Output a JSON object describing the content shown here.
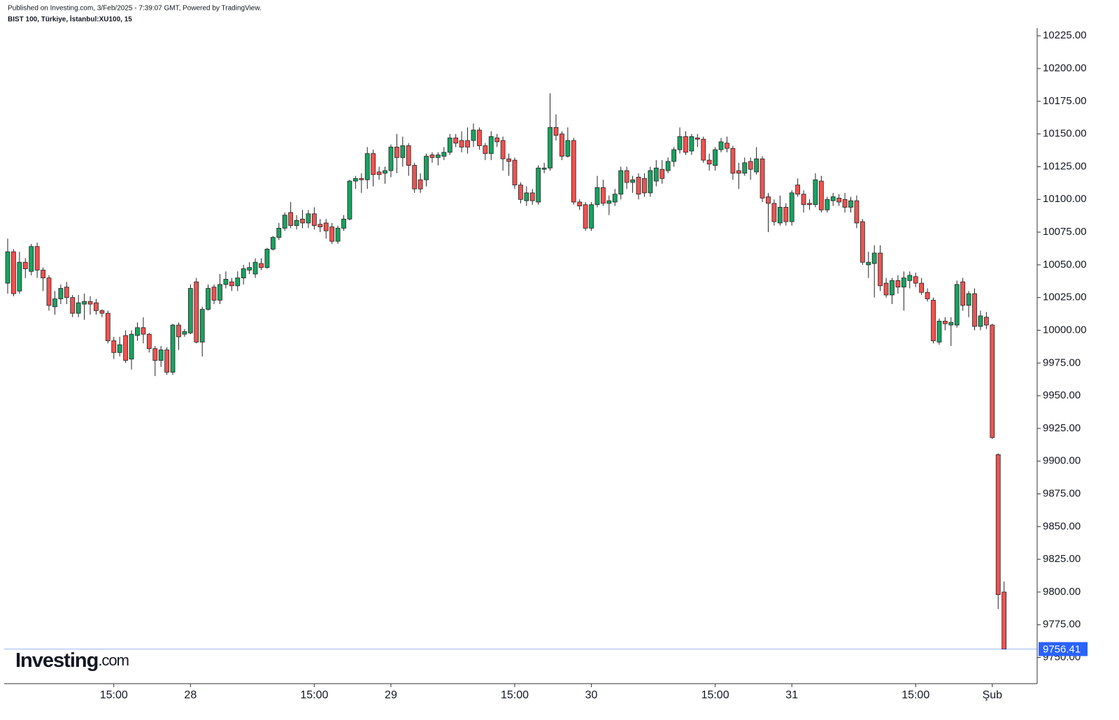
{
  "chart_data": {
    "type": "candlestick",
    "title": "Published on Investing.com, 3/Feb/2025 - 7:39:07 GMT, Powered by TradingView.",
    "subtitle": "BIST 100, Türkiye, İstanbul:XU100, 15",
    "logo": [
      "Investing",
      ".com"
    ],
    "up_color": "#1aa260",
    "down_color": "#ef5350",
    "ylim": [
      9730,
      10231
    ],
    "yticks": [
      {
        "value": 9750,
        "label": "9750.00"
      },
      {
        "value": 9775,
        "label": "9775.00"
      },
      {
        "value": 9800,
        "label": "9800.00"
      },
      {
        "value": 9825,
        "label": "9825.00"
      },
      {
        "value": 9850,
        "label": "9850.00"
      },
      {
        "value": 9875,
        "label": "9875.00"
      },
      {
        "value": 9900,
        "label": "9900.00"
      },
      {
        "value": 9925,
        "label": "9925.00"
      },
      {
        "value": 9950,
        "label": "9950.00"
      },
      {
        "value": 9975,
        "label": "9975.00"
      },
      {
        "value": 10000,
        "label": "10000.00"
      },
      {
        "value": 10025,
        "label": "10025.00"
      },
      {
        "value": 10050,
        "label": "10050.00"
      },
      {
        "value": 10075,
        "label": "10075.00"
      },
      {
        "value": 10100,
        "label": "10100.00"
      },
      {
        "value": 10125,
        "label": "10125.00"
      },
      {
        "value": 10150,
        "label": "10150.00"
      },
      {
        "value": 10175,
        "label": "10175.00"
      },
      {
        "value": 10200,
        "label": "10200.00"
      },
      {
        "value": 10225,
        "label": "10225.00"
      }
    ],
    "last_price": 9756.41,
    "last_price_color": "#2962ff",
    "categories": [
      null,
      null,
      null,
      null,
      null,
      null,
      null,
      null,
      null,
      null,
      null,
      null,
      null,
      null,
      null,
      null,
      null,
      null,
      "15:00",
      null,
      null,
      null,
      null,
      null,
      null,
      null,
      null,
      null,
      null,
      null,
      null,
      "28",
      null,
      null,
      null,
      null,
      null,
      null,
      null,
      null,
      null,
      null,
      null,
      null,
      null,
      null,
      null,
      null,
      null,
      null,
      null,
      null,
      "15:00",
      null,
      null,
      null,
      null,
      null,
      null,
      null,
      null,
      null,
      null,
      null,
      null,
      "29",
      null,
      null,
      null,
      null,
      null,
      null,
      null,
      null,
      null,
      null,
      null,
      null,
      null,
      null,
      null,
      null,
      null,
      null,
      null,
      null,
      "15:00",
      null,
      null,
      null,
      null,
      null,
      null,
      null,
      null,
      null,
      null,
      null,
      null,
      "30",
      null,
      null,
      null,
      null,
      null,
      null,
      null,
      null,
      null,
      null,
      null,
      null,
      null,
      null,
      null,
      null,
      null,
      null,
      null,
      null,
      "15:00",
      null,
      null,
      null,
      null,
      null,
      null,
      null,
      null,
      null,
      null,
      null,
      null,
      "31",
      null,
      null,
      null,
      null,
      null,
      null,
      null,
      null,
      null,
      null,
      null,
      null,
      null,
      null,
      null,
      null,
      null,
      null,
      null,
      null,
      "15:00",
      null,
      null,
      null,
      null,
      null,
      null,
      null,
      null,
      null,
      null,
      null,
      null,
      "Şub",
      null,
      null
    ],
    "open": [
      10036,
      10060,
      10030,
      10052,
      10045,
      10064,
      10046,
      10040,
      10018,
      10024,
      10033,
      10025,
      10013,
      10020,
      10022,
      10021,
      10015,
      10013,
      9992,
      9983,
      9996,
      9978,
      9996,
      10002,
      9997,
      9986,
      9977,
      9985,
      9968,
      10004,
      9997,
      9998,
      10037,
      9991,
      10016,
      10033,
      10023,
      10035,
      10037,
      10034,
      10040,
      10046,
      10043,
      10051,
      10048,
      10062,
      10071,
      10078,
      10090,
      10080,
      10085,
      10082,
      10089,
      10081,
      10082,
      10079,
      10068,
      10078,
      10085,
      10114,
      10116,
      10115,
      10135,
      10121,
      10120,
      10122,
      10140,
      10132,
      10141,
      10126,
      10115,
      10115,
      10134,
      10132,
      10133,
      10136,
      10147,
      10145,
      10145,
      10145,
      10153,
      10141,
      10135,
      10147,
      10145,
      10131,
      10130,
      10111,
      10099,
      10105,
      10098,
      10123,
      10124,
      10155,
      10150,
      10133,
      10145,
      10098,
      10096,
      10078,
      10096,
      10109,
      10097,
      10098,
      10104,
      10122,
      10113,
      10117,
      10116,
      10105,
      10114,
      10123,
      10122,
      10129,
      10138,
      10148,
      10137,
      10147,
      10146,
      10130,
      10126,
      10138,
      10143,
      10139,
      10122,
      10120,
      10129,
      10121,
      10131,
      10102,
      10097,
      10082,
      10094,
      10083,
      10111,
      10104,
      10097,
      10096,
      10114,
      10092,
      10099,
      10101,
      10100,
      10094,
      10099,
      10083,
      10050,
      10051,
      10059,
      10036,
      10027,
      10038,
      10033,
      10038,
      10041,
      10036,
      10029,
      10023,
      9991,
      10007,
      10004,
      10004,
      10037,
      10019,
      10028,
      10003,
      10010,
      10004,
      9905,
      9800
    ],
    "high": [
      10070,
      10062,
      10060,
      10055,
      10066,
      10067,
      10048,
      10042,
      10030,
      10035,
      10037,
      10027,
      10027,
      10028,
      10026,
      10024,
      10016,
      10015,
      9995,
      9995,
      10000,
      10000,
      10006,
      10010,
      9998,
      9988,
      9988,
      9987,
      10005,
      10006,
      10001,
      10035,
      10040,
      10018,
      10035,
      10035,
      10043,
      10045,
      10040,
      10045,
      10050,
      10052,
      10055,
      10055,
      10063,
      10072,
      10082,
      10090,
      10098,
      10088,
      10092,
      10092,
      10094,
      10085,
      10085,
      10082,
      10080,
      10088,
      10115,
      10118,
      10120,
      10140,
      10138,
      10125,
      10125,
      10142,
      10150,
      10148,
      10143,
      10128,
      10120,
      10135,
      10136,
      10136,
      10140,
      10150,
      10150,
      10152,
      10155,
      10158,
      10155,
      10143,
      10152,
      10150,
      10148,
      10135,
      10132,
      10113,
      10110,
      10108,
      10126,
      10128,
      10181,
      10165,
      10152,
      10155,
      10147,
      10100,
      10098,
      10098,
      10118,
      10115,
      10103,
      10108,
      10125,
      10125,
      10118,
      10120,
      10120,
      10125,
      10130,
      10130,
      10132,
      10140,
      10155,
      10152,
      10150,
      10150,
      10148,
      10135,
      10140,
      10147,
      10148,
      10141,
      10128,
      10132,
      10132,
      10140,
      10133,
      10105,
      10100,
      10103,
      10097,
      10107,
      10116,
      10107,
      10100,
      10120,
      10118,
      10102,
      10105,
      10104,
      10105,
      10102,
      10103,
      10085,
      10060,
      10065,
      10065,
      10040,
      10040,
      10042,
      10045,
      10045,
      10044,
      10040,
      10032,
      10025,
      10009,
      10010,
      10010,
      10038,
      10040,
      10030,
      10032,
      10015,
      10014,
      10005,
      9906,
      9808
    ],
    "low": [
      10028,
      10026,
      10028,
      10040,
      10042,
      10040,
      10030,
      10015,
      10012,
      10020,
      10020,
      10010,
      10010,
      10008,
      10012,
      10012,
      10010,
      9990,
      9978,
      9980,
      9975,
      9970,
      9992,
      9990,
      9983,
      9965,
      9972,
      9966,
      9966,
      9985,
      9995,
      9997,
      9990,
      9980,
      10015,
      10020,
      10020,
      10032,
      10030,
      10030,
      10035,
      10043,
      10040,
      10046,
      10047,
      10061,
      10069,
      10076,
      10078,
      10077,
      10078,
      10078,
      10077,
      10075,
      10070,
      10066,
      10066,
      10076,
      10084,
      10108,
      10105,
      10108,
      10110,
      10115,
      10112,
      10117,
      10120,
      10125,
      10118,
      10105,
      10105,
      10110,
      10128,
      10126,
      10130,
      10134,
      10140,
      10136,
      10135,
      10140,
      10138,
      10130,
      10130,
      10140,
      10122,
      10118,
      10108,
      10097,
      10095,
      10096,
      10096,
      10120,
      10122,
      10145,
      10130,
      10132,
      10096,
      10092,
      10076,
      10076,
      10094,
      10095,
      10088,
      10095,
      10100,
      10108,
      10105,
      10100,
      10102,
      10102,
      10110,
      10112,
      10120,
      10125,
      10135,
      10134,
      10134,
      10140,
      10128,
      10122,
      10122,
      10136,
      10136,
      10115,
      10108,
      10118,
      10115,
      10119,
      10098,
      10075,
      10080,
      10080,
      10080,
      10080,
      10102,
      10090,
      10092,
      10094,
      10090,
      10090,
      10095,
      10095,
      10090,
      10090,
      10078,
      10050,
      10040,
      10025,
      10030,
      10025,
      10020,
      10028,
      10015,
      10032,
      10033,
      10027,
      10022,
      9990,
      9989,
      10000,
      9988,
      10002,
      10015,
      10010,
      10000,
      10000,
      10001,
      9917,
      9787,
      9756.41
    ],
    "close": [
      10060,
      10028,
      10052,
      10047,
      10064,
      10046,
      10040,
      10019,
      10024,
      10032,
      10025,
      10013,
      10021,
      10022,
      10020,
      10015,
      10013,
      9992,
      9983,
      9989,
      9977,
      9997,
      10002,
      9997,
      9986,
      9977,
      9985,
      9968,
      10004,
      9995,
      9999,
      10032,
      9991,
      10016,
      10032,
      10023,
      10035,
      10039,
      10034,
      10040,
      10047,
      10048,
      10052,
      10048,
      10062,
      10071,
      10078,
      10088,
      10080,
      10084,
      10082,
      10089,
      10080,
      10079,
      10076,
      10068,
      10078,
      10085,
      10114,
      10116,
      10115,
      10135,
      10119,
      10119,
      10122,
      10140,
      10132,
      10141,
      10126,
      10108,
      10108,
      10133,
      10132,
      10134,
      10136,
      10147,
      10143,
      10140,
      10140,
      10153,
      10141,
      10135,
      10148,
      10144,
      10131,
      10129,
      10111,
      10100,
      10105,
      10099,
      10124,
      10124,
      10155,
      10149,
      10133,
      10145,
      10098,
      10095,
      10078,
      10096,
      10109,
      10097,
      10099,
      10104,
      10122,
      10113,
      10115,
      10104,
      10105,
      10122,
      10124,
      10116,
      10129,
      10138,
      10148,
      10136,
      10148,
      10146,
      10130,
      10127,
      10138,
      10144,
      10139,
      10120,
      10120,
      10128,
      10123,
      10131,
      10101,
      10097,
      10083,
      10094,
      10083,
      10105,
      10104,
      10096,
      10096,
      10115,
      10092,
      10100,
      10102,
      10098,
      10094,
      10099,
      10082,
      10052,
      10052,
      10059,
      10034,
      10027,
      10038,
      10033,
      10040,
      10042,
      10036,
      10029,
      10024,
      9992,
      10007,
      10005,
      10006,
      10035,
      10019,
      10028,
      10003,
      10011,
      10004,
      9918,
      9798,
      9756.41
    ]
  }
}
